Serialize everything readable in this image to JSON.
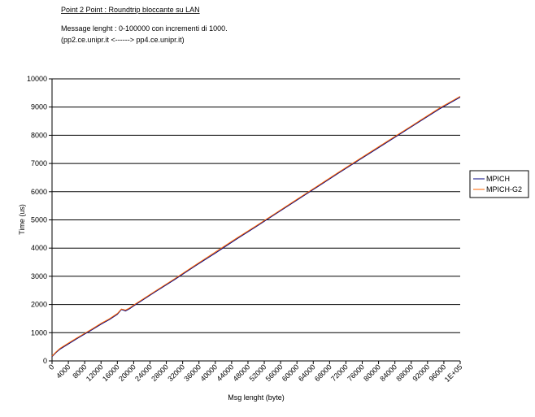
{
  "chart_data": {
    "type": "line",
    "title": "Point 2 Point  :  Roundtrip bloccante su LAN",
    "subtitle": "Message lenght : 0-100000 con incrementi di 1000.",
    "annotation": "(pp2.ce.unipr.it   <------>  pp4.ce.unipr.it)",
    "x_label": "Msg lenght (byte)",
    "y_label": "Time (us)",
    "x": [
      0,
      1000,
      2000,
      4000,
      6000,
      8000,
      10000,
      12000,
      14000,
      16000,
      17000,
      18000,
      19000,
      20000,
      25000,
      30000,
      35000,
      40000,
      45000,
      50000,
      55000,
      60000,
      65000,
      70000,
      75000,
      80000,
      85000,
      90000,
      95000,
      100000
    ],
    "series": [
      {
        "name": "MPICH",
        "color": "#000080",
        "values": [
          150,
          300,
          420,
          600,
          780,
          950,
          1120,
          1300,
          1460,
          1650,
          1820,
          1770,
          1850,
          1950,
          2420,
          2880,
          3360,
          3820,
          4300,
          4760,
          5230,
          5700,
          6170,
          6640,
          7100,
          7560,
          8020,
          8480,
          8940,
          9350
        ]
      },
      {
        "name": "MPICH-G2",
        "color": "#ff6600",
        "values": [
          170,
          320,
          450,
          630,
          810,
          980,
          1150,
          1330,
          1490,
          1680,
          1840,
          1800,
          1880,
          1980,
          2450,
          2910,
          3390,
          3860,
          4330,
          4790,
          5260,
          5730,
          6200,
          6670,
          7130,
          7590,
          8050,
          8510,
          8970,
          9380
        ]
      }
    ],
    "xlim": [
      0,
      100000
    ],
    "xticks": [
      0,
      4000,
      8000,
      12000,
      16000,
      20000,
      24000,
      28000,
      32000,
      36000,
      40000,
      44000,
      48000,
      52000,
      56000,
      60000,
      64000,
      68000,
      72000,
      76000,
      80000,
      84000,
      88000,
      92000,
      96000,
      {
        "value": 100000,
        "label": "1E+05"
      }
    ],
    "ylim": [
      0,
      10000
    ],
    "yticks": [
      0,
      1000,
      2000,
      3000,
      4000,
      5000,
      6000,
      7000,
      8000,
      9000,
      10000
    ],
    "grid": true,
    "legend": "right"
  }
}
